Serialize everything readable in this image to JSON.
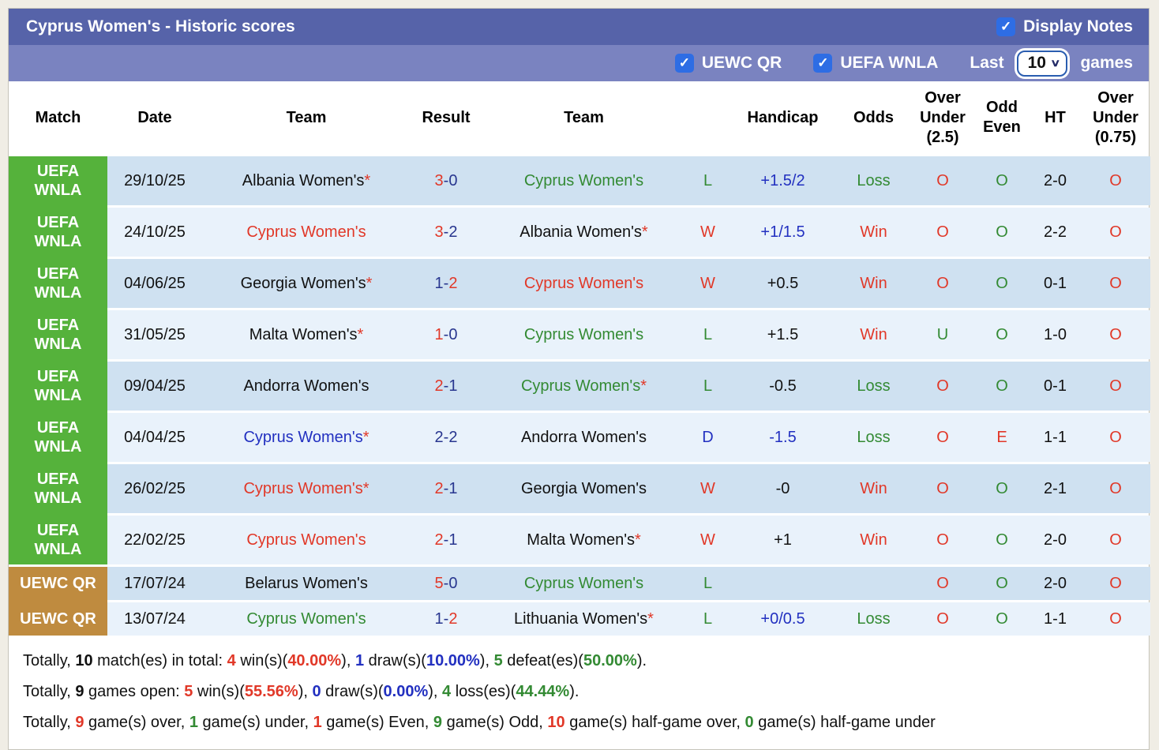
{
  "colors": {
    "red": "#e13828",
    "green": "#338a33",
    "blue": "#2230c0",
    "navy": "#28368f",
    "black": "#111111",
    "badge_green": "#55b23b",
    "badge_orange": "#bf8b3f",
    "bar_top": "#5663a9",
    "bar_filter": "#7a83c0",
    "checkbox_blue": "#2e6de4",
    "row_dark": "#cfe1f1",
    "row_light": "#e9f2fb"
  },
  "header": {
    "title": "Cyprus Women's - Historic scores",
    "display_notes_label": "Display Notes",
    "display_notes_checked": "✓"
  },
  "filter_bar": {
    "uewc_qr_label": "UEWC QR",
    "uewc_qr_checked": "✓",
    "uefa_wnla_label": "UEFA WNLA",
    "uefa_wnla_checked": "✓",
    "last_label": "Last",
    "games_select_value": "10",
    "games_label": "games"
  },
  "table": {
    "headers": [
      "Match",
      "Date",
      "Team",
      "Result",
      "Team",
      "",
      "Handicap",
      "Odds",
      "Over\nUnder\n(2.5)",
      "Odd\nEven",
      "HT",
      "Over\nUnder\n(0.75)"
    ],
    "rows": [
      {
        "competition": "UEFA\nWNLA",
        "competition_style": "green",
        "extend_badge": true,
        "size": "tall",
        "date": "29/10/25",
        "team1": {
          "name": "Albania Women's",
          "asterisk": true,
          "color": "black"
        },
        "result": {
          "home": "3",
          "away": "0",
          "home_color": "red",
          "away_color": "navy"
        },
        "team2": {
          "name": "Cyprus Women's",
          "asterisk": false,
          "color": "green"
        },
        "letter": {
          "text": "L",
          "color": "green"
        },
        "handicap": {
          "text": "+1.5/2",
          "color": "blue"
        },
        "odds": {
          "text": "Loss",
          "color": "green"
        },
        "ou25": {
          "text": "O",
          "color": "red"
        },
        "odd_even": {
          "text": "O",
          "color": "green"
        },
        "ht": "2-0",
        "ou075": {
          "text": "O",
          "color": "red"
        }
      },
      {
        "competition": "UEFA\nWNLA",
        "competition_style": "green",
        "extend_badge": true,
        "size": "tall",
        "date": "24/10/25",
        "team1": {
          "name": "Cyprus Women's",
          "asterisk": false,
          "color": "red"
        },
        "result": {
          "home": "3",
          "away": "2",
          "home_color": "red",
          "away_color": "navy"
        },
        "team2": {
          "name": "Albania Women's",
          "asterisk": true,
          "color": "black"
        },
        "letter": {
          "text": "W",
          "color": "red"
        },
        "handicap": {
          "text": "+1/1.5",
          "color": "blue"
        },
        "odds": {
          "text": "Win",
          "color": "red"
        },
        "ou25": {
          "text": "O",
          "color": "red"
        },
        "odd_even": {
          "text": "O",
          "color": "green"
        },
        "ht": "2-2",
        "ou075": {
          "text": "O",
          "color": "red"
        }
      },
      {
        "competition": "UEFA\nWNLA",
        "competition_style": "green",
        "extend_badge": true,
        "size": "tall",
        "date": "04/06/25",
        "team1": {
          "name": "Georgia Women's",
          "asterisk": true,
          "color": "black"
        },
        "result": {
          "home": "1",
          "away": "2",
          "home_color": "navy",
          "away_color": "red"
        },
        "team2": {
          "name": "Cyprus Women's",
          "asterisk": false,
          "color": "red"
        },
        "letter": {
          "text": "W",
          "color": "red"
        },
        "handicap": {
          "text": "+0.5",
          "color": "black"
        },
        "odds": {
          "text": "Win",
          "color": "red"
        },
        "ou25": {
          "text": "O",
          "color": "red"
        },
        "odd_even": {
          "text": "O",
          "color": "green"
        },
        "ht": "0-1",
        "ou075": {
          "text": "O",
          "color": "red"
        }
      },
      {
        "competition": "UEFA\nWNLA",
        "competition_style": "green",
        "extend_badge": true,
        "size": "tall",
        "date": "31/05/25",
        "team1": {
          "name": "Malta Women's",
          "asterisk": true,
          "color": "black"
        },
        "result": {
          "home": "1",
          "away": "0",
          "home_color": "red",
          "away_color": "navy"
        },
        "team2": {
          "name": "Cyprus Women's",
          "asterisk": false,
          "color": "green"
        },
        "letter": {
          "text": "L",
          "color": "green"
        },
        "handicap": {
          "text": "+1.5",
          "color": "black"
        },
        "odds": {
          "text": "Win",
          "color": "red"
        },
        "ou25": {
          "text": "U",
          "color": "green"
        },
        "odd_even": {
          "text": "O",
          "color": "green"
        },
        "ht": "1-0",
        "ou075": {
          "text": "O",
          "color": "red"
        }
      },
      {
        "competition": "UEFA\nWNLA",
        "competition_style": "green",
        "extend_badge": true,
        "size": "tall",
        "date": "09/04/25",
        "team1": {
          "name": "Andorra Women's",
          "asterisk": false,
          "color": "black"
        },
        "result": {
          "home": "2",
          "away": "1",
          "home_color": "red",
          "away_color": "navy"
        },
        "team2": {
          "name": "Cyprus Women's",
          "asterisk": true,
          "color": "green"
        },
        "letter": {
          "text": "L",
          "color": "green"
        },
        "handicap": {
          "text": "-0.5",
          "color": "black"
        },
        "odds": {
          "text": "Loss",
          "color": "green"
        },
        "ou25": {
          "text": "O",
          "color": "red"
        },
        "odd_even": {
          "text": "O",
          "color": "green"
        },
        "ht": "0-1",
        "ou075": {
          "text": "O",
          "color": "red"
        }
      },
      {
        "competition": "UEFA\nWNLA",
        "competition_style": "green",
        "extend_badge": true,
        "size": "tall",
        "date": "04/04/25",
        "team1": {
          "name": "Cyprus Women's",
          "asterisk": true,
          "color": "blue"
        },
        "result": {
          "home": "2",
          "away": "2",
          "home_color": "navy",
          "away_color": "navy"
        },
        "team2": {
          "name": "Andorra Women's",
          "asterisk": false,
          "color": "black"
        },
        "letter": {
          "text": "D",
          "color": "blue"
        },
        "handicap": {
          "text": "-1.5",
          "color": "blue"
        },
        "odds": {
          "text": "Loss",
          "color": "green"
        },
        "ou25": {
          "text": "O",
          "color": "red"
        },
        "odd_even": {
          "text": "E",
          "color": "red"
        },
        "ht": "1-1",
        "ou075": {
          "text": "O",
          "color": "red"
        }
      },
      {
        "competition": "UEFA\nWNLA",
        "competition_style": "green",
        "extend_badge": true,
        "size": "tall",
        "date": "26/02/25",
        "team1": {
          "name": "Cyprus Women's",
          "asterisk": true,
          "color": "red"
        },
        "result": {
          "home": "2",
          "away": "1",
          "home_color": "red",
          "away_color": "navy"
        },
        "team2": {
          "name": "Georgia Women's",
          "asterisk": false,
          "color": "black"
        },
        "letter": {
          "text": "W",
          "color": "red"
        },
        "handicap": {
          "text": "-0",
          "color": "black"
        },
        "odds": {
          "text": "Win",
          "color": "red"
        },
        "ou25": {
          "text": "O",
          "color": "red"
        },
        "odd_even": {
          "text": "O",
          "color": "green"
        },
        "ht": "2-1",
        "ou075": {
          "text": "O",
          "color": "red"
        }
      },
      {
        "competition": "UEFA\nWNLA",
        "competition_style": "green",
        "extend_badge": false,
        "size": "tall",
        "date": "22/02/25",
        "team1": {
          "name": "Cyprus Women's",
          "asterisk": false,
          "color": "red"
        },
        "result": {
          "home": "2",
          "away": "1",
          "home_color": "red",
          "away_color": "navy"
        },
        "team2": {
          "name": "Malta Women's",
          "asterisk": true,
          "color": "black"
        },
        "letter": {
          "text": "W",
          "color": "red"
        },
        "handicap": {
          "text": "+1",
          "color": "black"
        },
        "odds": {
          "text": "Win",
          "color": "red"
        },
        "ou25": {
          "text": "O",
          "color": "red"
        },
        "odd_even": {
          "text": "O",
          "color": "green"
        },
        "ht": "2-0",
        "ou075": {
          "text": "O",
          "color": "red"
        }
      },
      {
        "competition": "UEWC QR",
        "competition_style": "orange",
        "extend_badge": true,
        "size": "short",
        "date": "17/07/24",
        "team1": {
          "name": "Belarus Women's",
          "asterisk": false,
          "color": "black"
        },
        "result": {
          "home": "5",
          "away": "0",
          "home_color": "red",
          "away_color": "navy"
        },
        "team2": {
          "name": "Cyprus Women's",
          "asterisk": false,
          "color": "green"
        },
        "letter": {
          "text": "L",
          "color": "green"
        },
        "handicap": {
          "text": "",
          "color": "black"
        },
        "odds": {
          "text": "",
          "color": "black"
        },
        "ou25": {
          "text": "O",
          "color": "red"
        },
        "odd_even": {
          "text": "O",
          "color": "green"
        },
        "ht": "2-0",
        "ou075": {
          "text": "O",
          "color": "red"
        }
      },
      {
        "competition": "UEWC QR",
        "competition_style": "orange",
        "extend_badge": false,
        "size": "short",
        "date": "13/07/24",
        "team1": {
          "name": "Cyprus Women's",
          "asterisk": false,
          "color": "green"
        },
        "result": {
          "home": "1",
          "away": "2",
          "home_color": "navy",
          "away_color": "red"
        },
        "team2": {
          "name": "Lithuania Women's",
          "asterisk": true,
          "color": "black"
        },
        "letter": {
          "text": "L",
          "color": "green"
        },
        "handicap": {
          "text": "+0/0.5",
          "color": "blue"
        },
        "odds": {
          "text": "Loss",
          "color": "green"
        },
        "ou25": {
          "text": "O",
          "color": "red"
        },
        "odd_even": {
          "text": "O",
          "color": "green"
        },
        "ht": "1-1",
        "ou075": {
          "text": "O",
          "color": "red"
        }
      }
    ]
  },
  "summary": {
    "lines": [
      [
        {
          "t": "Totally, "
        },
        {
          "t": "10",
          "b": true
        },
        {
          "t": " match(es) in total: "
        },
        {
          "t": "4",
          "b": true,
          "c": "red"
        },
        {
          "t": " win(s)("
        },
        {
          "t": "40.00%",
          "b": true,
          "c": "red"
        },
        {
          "t": "), "
        },
        {
          "t": "1",
          "b": true,
          "c": "blue"
        },
        {
          "t": " draw(s)("
        },
        {
          "t": "10.00%",
          "b": true,
          "c": "blue"
        },
        {
          "t": "), "
        },
        {
          "t": "5",
          "b": true,
          "c": "green"
        },
        {
          "t": " defeat(es)("
        },
        {
          "t": "50.00%",
          "b": true,
          "c": "green"
        },
        {
          "t": ")."
        }
      ],
      [
        {
          "t": "Totally, "
        },
        {
          "t": "9",
          "b": true
        },
        {
          "t": " games open: "
        },
        {
          "t": "5",
          "b": true,
          "c": "red"
        },
        {
          "t": " win(s)("
        },
        {
          "t": "55.56%",
          "b": true,
          "c": "red"
        },
        {
          "t": "), "
        },
        {
          "t": "0",
          "b": true,
          "c": "blue"
        },
        {
          "t": " draw(s)("
        },
        {
          "t": "0.00%",
          "b": true,
          "c": "blue"
        },
        {
          "t": "), "
        },
        {
          "t": "4",
          "b": true,
          "c": "green"
        },
        {
          "t": " loss(es)("
        },
        {
          "t": "44.44%",
          "b": true,
          "c": "green"
        },
        {
          "t": ")."
        }
      ],
      [
        {
          "t": "Totally, "
        },
        {
          "t": "9",
          "b": true,
          "c": "red"
        },
        {
          "t": " game(s) over, "
        },
        {
          "t": "1",
          "b": true,
          "c": "green"
        },
        {
          "t": " game(s) under, "
        },
        {
          "t": "1",
          "b": true,
          "c": "red"
        },
        {
          "t": " game(s) Even, "
        },
        {
          "t": "9",
          "b": true,
          "c": "green"
        },
        {
          "t": " game(s) Odd, "
        },
        {
          "t": "10",
          "b": true,
          "c": "red"
        },
        {
          "t": " game(s) half-game over, "
        },
        {
          "t": "0",
          "b": true,
          "c": "green"
        },
        {
          "t": " game(s) half-game under"
        }
      ]
    ]
  }
}
